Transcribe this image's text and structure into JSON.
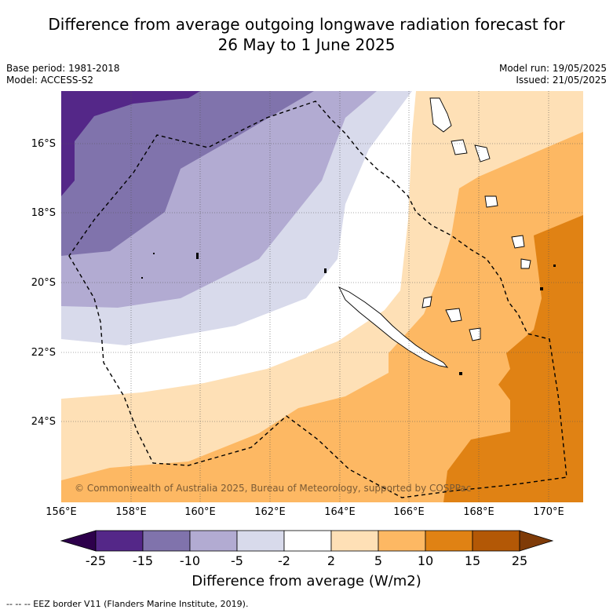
{
  "title_line1": "Difference from average outgoing longwave radiation forecast for",
  "title_line2": "26 May to 1 June 2025",
  "meta_left": {
    "base_period": "Base period: 1981-2018",
    "model": "Model: ACCESS-S2"
  },
  "meta_right": {
    "model_run": "Model run: 19/05/2025",
    "issued": "Issued: 21/05/2025"
  },
  "copyright": "© Commonwealth of Australia 2025, Bureau of Meteorology, supported by COSPPac",
  "lat_labels": [
    "16°S",
    "18°S",
    "20°S",
    "22°S",
    "24°S"
  ],
  "lon_labels": [
    "156°E",
    "158°E",
    "160°E",
    "162°E",
    "164°E",
    "166°E",
    "168°E",
    "170°E"
  ],
  "colorbar": {
    "ticks": [
      "-25",
      "-15",
      "-10",
      "-5",
      "-2",
      "2",
      "5",
      "10",
      "15",
      "25"
    ],
    "colors": [
      "#2d004b",
      "#542788",
      "#8073ac",
      "#b2abd2",
      "#d8daeb",
      "#ffffff",
      "#fee0b6",
      "#fdb863",
      "#e08214",
      "#b35806",
      "#7f3b08"
    ],
    "title": "Difference from average (W/m2)"
  },
  "legend_text": "--  --  -- EEZ border V11 (Flanders Marine Institute, 2019)."
}
